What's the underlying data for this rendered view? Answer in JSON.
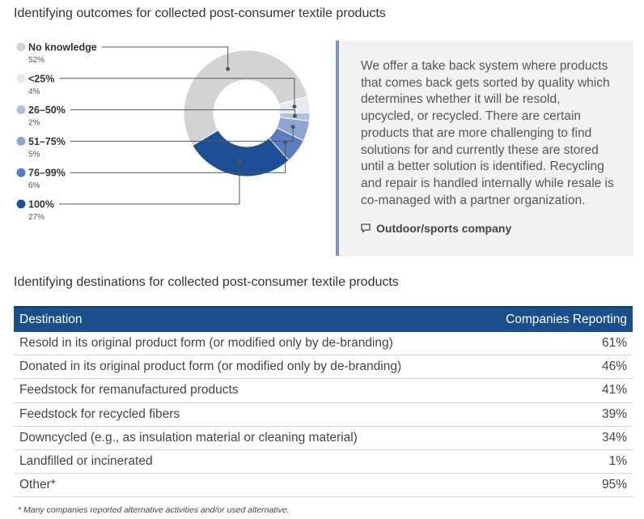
{
  "sections": {
    "outcomes_title": "Identifying outcomes for collected post-consumer textile products",
    "destinations_title": "Identifying destinations for collected post-consumer textile products"
  },
  "chart_data": {
    "type": "pie",
    "title": "Identifying outcomes for collected post-consumer textile products",
    "donut": true,
    "legend": "left",
    "slices": [
      {
        "label": "No knowledge",
        "value": 52,
        "value_label": "52%",
        "color": "#d3d3d3"
      },
      {
        "label": "<25%",
        "value": 4,
        "value_label": "4%",
        "color": "#e4e9f5"
      },
      {
        "label": "26–50%",
        "value": 2,
        "value_label": "2%",
        "color": "#b0c0df"
      },
      {
        "label": "51–75%",
        "value": 5,
        "value_label": "5%",
        "color": "#8ea4d3"
      },
      {
        "label": "76–99%",
        "value": 6,
        "value_label": "6%",
        "color": "#5b7cbf"
      },
      {
        "label": "100%",
        "value": 27,
        "value_label": "27%",
        "color": "#1d4f94"
      }
    ]
  },
  "quote": {
    "text": "We offer a take back system where products that comes back gets sorted by quality which determines whether it will be resold, upcycled, or recycled. There are certain products that are more challenging to find solutions for and currently these are stored until a better solution is identified. Recycling and repair is handled internally while resale is co-managed with a partner organization.",
    "attribution": "Outdoor/sports company",
    "icon": "speech-bubble-icon",
    "border_color": "#7d93c4"
  },
  "table": {
    "header_color": "#1a4f8b",
    "columns": [
      "Destination",
      "Companies Reporting"
    ],
    "rows": [
      {
        "destination": "Resold in its original product form (or modified only by de-branding)",
        "pct": "61%"
      },
      {
        "destination": "Donated in its original product form (or modified only by de-branding)",
        "pct": "46%"
      },
      {
        "destination": "Feedstock for remanufactured products",
        "pct": "41%"
      },
      {
        "destination": "Feedstock for recycled fibers",
        "pct": "39%"
      },
      {
        "destination": "Downcycled (e.g., as insulation material or cleaning material)",
        "pct": "34%"
      },
      {
        "destination": "Landfilled or incinerated",
        "pct": "1%"
      },
      {
        "destination": "Other*",
        "pct": "95%"
      }
    ]
  },
  "footnote": "* Many companies reported alternative activities and/or used alternative."
}
